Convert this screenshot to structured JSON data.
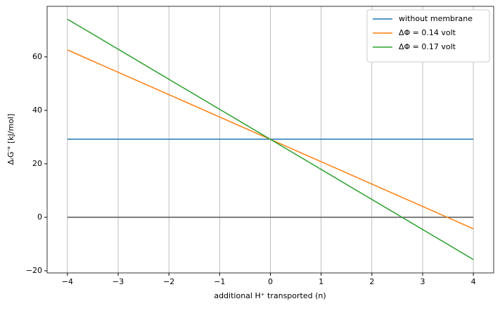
{
  "chart_data": {
    "type": "line",
    "x_label": "additional H⁺ transported (n)",
    "y_label": "ΔᵣG′°  [kJ/mol]",
    "x": [
      -4,
      4
    ],
    "series": [
      {
        "name": "without membrane",
        "color": "#1f77b4",
        "values": [
          29.2,
          29.2
        ]
      },
      {
        "name": "ΔΦ = 0.14 volt",
        "color": "#ff7f0e",
        "values": [
          62.6,
          -4.3
        ]
      },
      {
        "name": "ΔΦ = 0.17 volt",
        "color": "#2ca02c",
        "values": [
          74.1,
          -15.8
        ]
      }
    ],
    "hline": {
      "value": 0,
      "color": "#555555"
    },
    "xlim": [
      -4.4,
      4.4
    ],
    "ylim": [
      -20.8,
      78.9
    ],
    "xticks": [
      {
        "value": -4,
        "label": "−4"
      },
      {
        "value": -3,
        "label": "−3"
      },
      {
        "value": -2,
        "label": "−2"
      },
      {
        "value": -1,
        "label": "−1"
      },
      0,
      1,
      2,
      3,
      4
    ],
    "yticks": [
      {
        "value": -20,
        "label": "−20"
      },
      0,
      20,
      40,
      60
    ],
    "grid": "x",
    "legend": "upper-right"
  }
}
